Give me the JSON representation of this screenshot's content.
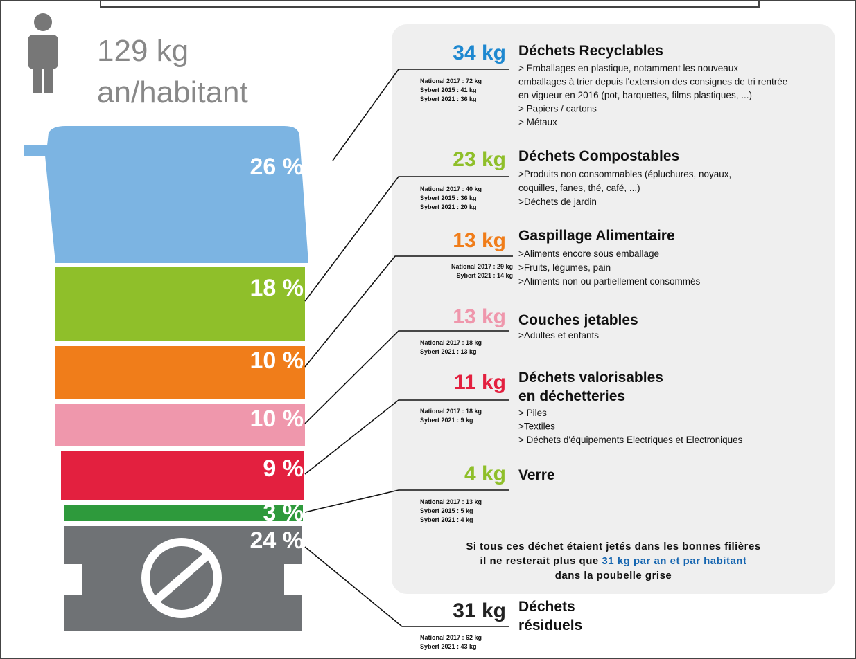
{
  "header": {
    "weight": "129 kg",
    "unit": "an/habitant"
  },
  "segments": [
    "26 %",
    "18 %",
    "10 %",
    "10 %",
    "9 %",
    "3 %",
    "24 %"
  ],
  "items": [
    {
      "amount": "34 kg",
      "title": [
        "Déchets Recyclables"
      ],
      "details": [
        "> Emballages en plastique, notamment les nouveaux",
        "emballages à trier depuis l'extension des consignes de tri rentrée",
        "en vigueur en 2016 (pot, barquettes, films plastiques, ...)",
        "> Papiers / cartons",
        "> Métaux"
      ],
      "stats": [
        "National 2017 : 72 kg",
        "Sybert 2015 : 41 kg",
        "Sybert 2021 : 36 kg"
      ]
    },
    {
      "amount": "23 kg",
      "title": [
        "Déchets Compostables"
      ],
      "details": [
        ">Produits non consommables (épluchures, noyaux,",
        "coquilles, fanes, thé, café, ...)",
        ">Déchets de jardin"
      ],
      "stats": [
        "National 2017 : 40 kg",
        "Sybert 2015 : 36 kg",
        "Sybert 2021 : 20 kg"
      ]
    },
    {
      "amount": "13 kg",
      "title": [
        "Gaspillage Alimentaire"
      ],
      "details": [
        ">Aliments encore sous emballage",
        ">Fruits, légumes, pain",
        ">Aliments non ou partiellement consommés"
      ],
      "stats": [
        "National 2017 : 29 kg",
        "Sybert 2021 : 14 kg"
      ]
    },
    {
      "amount": "13 kg",
      "title": [
        "Couches jetables"
      ],
      "details": [
        ">Adultes et enfants"
      ],
      "stats": [
        "National 2017 : 18 kg",
        "Sybert 2021 : 13 kg"
      ]
    },
    {
      "amount": "11 kg",
      "title": [
        "Déchets valorisables",
        "en déchetteries"
      ],
      "details": [
        "> Piles",
        ">Textiles",
        "> Déchets d'équipements Electriques et Electroniques"
      ],
      "stats": [
        "National 2017 : 18 kg",
        "Sybert 2021 : 9 kg"
      ]
    },
    {
      "amount": "4 kg",
      "title": [
        "Verre"
      ],
      "details": [],
      "stats": [
        "National 2017 : 13 kg",
        "Sybert 2015 : 5 kg",
        "Sybert 2021 : 4 kg"
      ]
    },
    {
      "amount": "31 kg",
      "title": [
        "Déchets",
        "résiduels"
      ],
      "details": [],
      "stats": [
        "National 2017 : 62 kg",
        "Sybert 2021 : 43 kg"
      ]
    }
  ],
  "note": {
    "line1": "Si tous ces déchet étaient jetés dans les bonnes filières",
    "line2": "il ne resterait plus que",
    "highlight": "31 kg par an et par habitant",
    "line3": "dans la poubelle grise"
  }
}
